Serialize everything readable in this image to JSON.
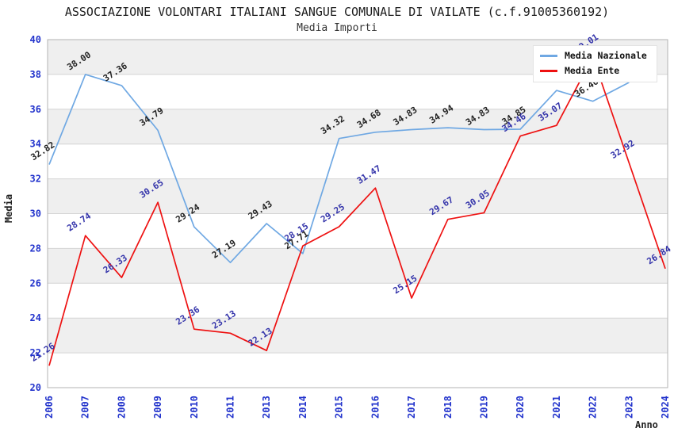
{
  "title": "ASSOCIAZIONE VOLONTARI ITALIANI SANGUE COMUNALE DI VAILATE (c.f.91005360192)",
  "subtitle": "Media Importi",
  "axes": {
    "y_title": "Media",
    "x_title": "Anno"
  },
  "legend": {
    "items": [
      {
        "label": "Media Nazionale",
        "color": "#6FA8E3"
      },
      {
        "label": "Media Ente",
        "color": "#EE1111"
      }
    ]
  },
  "colors": {
    "tick_label": "#2233CC",
    "grid_line": "#D4D4D4",
    "plot_border": "#B3B3B3",
    "band_gray": "#EFEFEF",
    "band_white": "#FFFFFF",
    "national_label": "#222222",
    "ente_label": "#3333AA"
  },
  "chart_data": {
    "type": "line",
    "title": "Media Importi",
    "xlabel": "Anno",
    "ylabel": "Media",
    "ylim": [
      20,
      40
    ],
    "y_ticks": [
      20,
      22,
      24,
      26,
      28,
      30,
      32,
      34,
      36,
      38,
      40
    ],
    "grid": true,
    "legend_position": "top-right",
    "categories": [
      "2006",
      "2007",
      "2008",
      "2009",
      "2010",
      "2011",
      "2013",
      "2014",
      "2015",
      "2016",
      "2017",
      "2018",
      "2019",
      "2020",
      "2021",
      "2022",
      "2023",
      "2024"
    ],
    "series": [
      {
        "name": "Media Nazionale",
        "color": "#6FA8E3",
        "label_color": "#222222",
        "values": [
          32.82,
          38.0,
          37.36,
          34.79,
          29.24,
          27.19,
          29.43,
          27.71,
          34.32,
          34.68,
          34.83,
          34.94,
          34.83,
          34.85,
          37.08,
          36.46,
          37.54,
          null
        ],
        "labels": [
          "32.82",
          "38.00",
          "37.36",
          "34.79",
          "29.24",
          "27.19",
          "29.43",
          "27.71",
          "34.32",
          "34.68",
          "34.83",
          "34.94",
          "34.83",
          "34.85",
          null,
          "36.46",
          null,
          null
        ]
      },
      {
        "name": "Media Ente",
        "color": "#EE1111",
        "label_color": "#3333AA",
        "values": [
          21.26,
          28.74,
          26.33,
          30.65,
          23.36,
          23.13,
          22.13,
          28.15,
          29.25,
          31.47,
          25.15,
          29.67,
          30.05,
          34.46,
          35.07,
          39.01,
          32.92,
          26.84
        ],
        "labels": [
          "21.26",
          "28.74",
          "26.33",
          "30.65",
          "23.36",
          "23.13",
          "22.13",
          "28.15",
          "29.25",
          "31.47",
          "25.15",
          "29.67",
          "30.05",
          "34.46",
          "35.07",
          "39.01",
          "32.92",
          "26.84"
        ]
      }
    ]
  }
}
